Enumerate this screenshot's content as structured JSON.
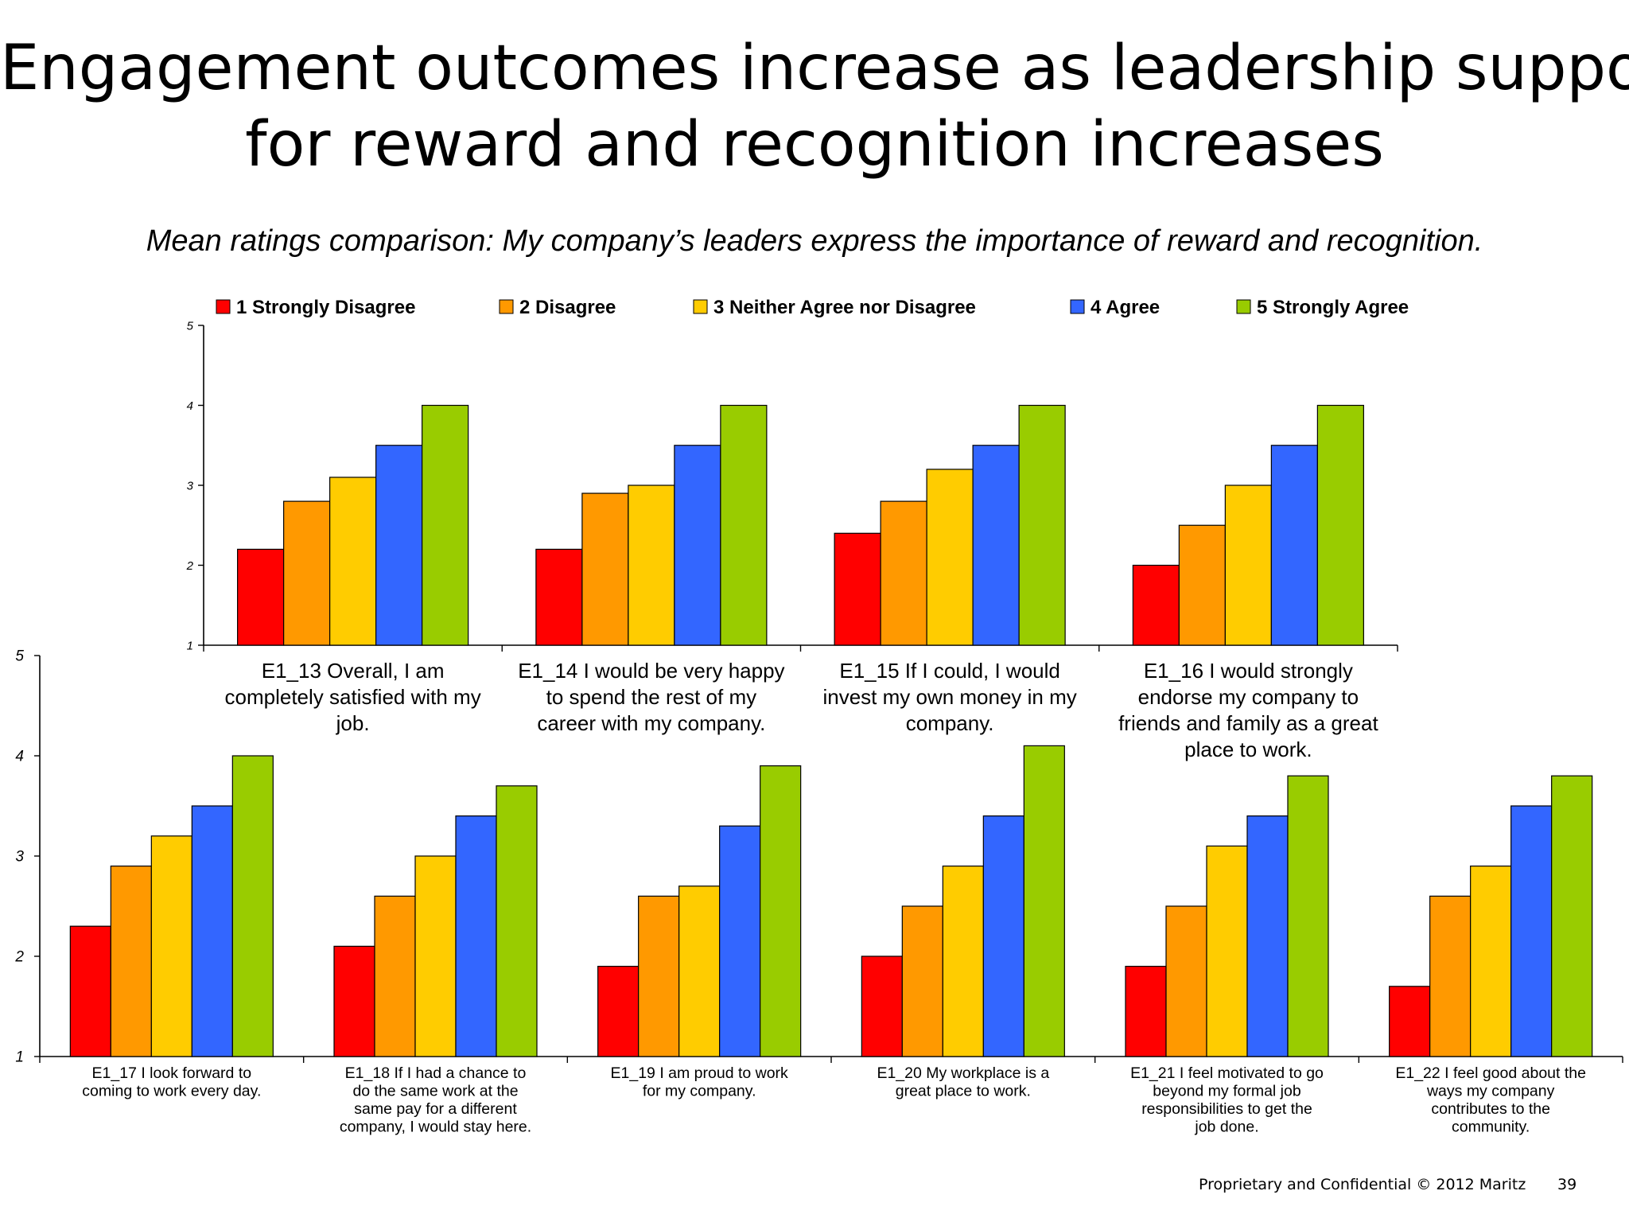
{
  "slide": {
    "title_line1": "Engagement outcomes increase as leadership support",
    "title_line2": "for reward and recognition increases",
    "subtitle": "Mean ratings comparison:  My company’s leaders express the importance of reward and recognition.",
    "footer": "Proprietary and Confidential © 2012 Maritz",
    "page_number": "39"
  },
  "colors": {
    "1 Strongly Disagree": "#ff0000",
    "2 Disagree": "#ff9900",
    "3 Neither Agree nor Disagree": "#ffcc00",
    "4 Agree": "#3366ff",
    "5 Strongly Agree": "#99cc00"
  },
  "chart_data": [
    {
      "type": "bar",
      "legend": [
        "1 Strongly Disagree",
        "2 Disagree",
        "3 Neither Agree nor Disagree",
        "4 Agree",
        "5 Strongly Agree"
      ],
      "legend_placement": "top",
      "ylim": [
        1,
        5
      ],
      "yticks": [
        "1",
        "2",
        "3",
        "4",
        "5"
      ],
      "categories": [
        [
          "E1_13 Overall, I am",
          "completely satisfied with my",
          "job."
        ],
        [
          "E1_14 I would be very happy",
          "to spend the rest of my",
          "career with my company."
        ],
        [
          "E1_15 If I could, I would",
          "invest my own money in my",
          "company."
        ],
        [
          "E1_16 I would strongly",
          "endorse my company to",
          "friends and family as a great",
          "place to work."
        ]
      ],
      "series": [
        {
          "name": "1 Strongly Disagree",
          "values": [
            2.2,
            2.2,
            2.4,
            2.0
          ]
        },
        {
          "name": "2 Disagree",
          "values": [
            2.8,
            2.9,
            2.8,
            2.5
          ]
        },
        {
          "name": "3 Neither Agree nor Disagree",
          "values": [
            3.1,
            3.0,
            3.2,
            3.0
          ]
        },
        {
          "name": "4 Agree",
          "values": [
            3.5,
            3.5,
            3.5,
            3.5
          ]
        },
        {
          "name": "5 Strongly Agree",
          "values": [
            4.0,
            4.0,
            4.0,
            4.0
          ]
        }
      ]
    },
    {
      "type": "bar",
      "ylim": [
        1,
        5
      ],
      "yticks": [
        "1",
        "2",
        "3",
        "4",
        "5"
      ],
      "categories": [
        [
          "E1_17 I look forward to",
          "coming to work every day."
        ],
        [
          "E1_18 If I had a chance to",
          "do the same work at the",
          "same pay for a different",
          "company, I would stay here."
        ],
        [
          "E1_19 I am proud to work",
          "for my company."
        ],
        [
          "E1_20 My workplace is a",
          "great place to work."
        ],
        [
          "E1_21 I feel motivated to go",
          "beyond my formal job",
          "responsibilities to get the",
          "job done."
        ],
        [
          "E1_22 I feel good about the",
          "ways my company",
          "contributes to the",
          "community."
        ]
      ],
      "series": [
        {
          "name": "1 Strongly Disagree",
          "values": [
            2.3,
            2.1,
            1.9,
            2.0,
            1.9,
            1.7
          ]
        },
        {
          "name": "2 Disagree",
          "values": [
            2.9,
            2.6,
            2.6,
            2.5,
            2.5,
            2.6
          ]
        },
        {
          "name": "3 Neither Agree nor Disagree",
          "values": [
            3.2,
            3.0,
            2.7,
            2.9,
            3.1,
            2.9
          ]
        },
        {
          "name": "4 Agree",
          "values": [
            3.5,
            3.4,
            3.3,
            3.4,
            3.4,
            3.5
          ]
        },
        {
          "name": "5 Strongly Agree",
          "values": [
            4.0,
            3.7,
            3.9,
            4.1,
            3.8,
            3.8
          ]
        }
      ]
    }
  ]
}
